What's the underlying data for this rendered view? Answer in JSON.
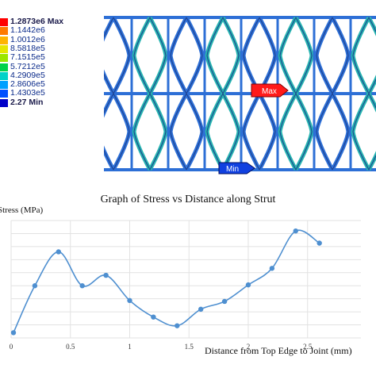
{
  "legend": {
    "entries": [
      {
        "value": "1.2873e6",
        "suffix": "Max",
        "color": "#ff0000"
      },
      {
        "value": "1.1442e6",
        "suffix": "",
        "color": "#ff7a00"
      },
      {
        "value": "1.0012e6",
        "suffix": "",
        "color": "#ffb400"
      },
      {
        "value": "8.5818e5",
        "suffix": "",
        "color": "#e6e600"
      },
      {
        "value": "7.1515e5",
        "suffix": "",
        "color": "#9be600"
      },
      {
        "value": "5.7212e5",
        "suffix": "",
        "color": "#00d24a"
      },
      {
        "value": "4.2909e5",
        "suffix": "",
        "color": "#00d2c8"
      },
      {
        "value": "2.8606e5",
        "suffix": "",
        "color": "#00a0ff"
      },
      {
        "value": "1.4303e5",
        "suffix": "",
        "color": "#0050ff"
      },
      {
        "value": "2.27",
        "suffix": "Min",
        "color": "#0000c8"
      }
    ]
  },
  "fea": {
    "max_label": "Max",
    "min_label": "Min",
    "colors": {
      "strut": "#2d6fd6",
      "strut_hot": "#27b3b0",
      "grid": "#9aa0a6",
      "marker_max": "#ff1a1a",
      "marker_min": "#1040e0"
    }
  },
  "chart_data": {
    "type": "line",
    "title": "Graph of Stress vs Distance along Strut",
    "ylabel": "Stress (MPa)",
    "xlabel": "Distance from Top Edge to Joint (mm)",
    "xticks": [
      "0",
      "0.5",
      "1",
      "1.5",
      "2",
      "2.5"
    ],
    "xlim": [
      0,
      2.95
    ],
    "ylim": [
      0,
      1.35
    ],
    "grid": true,
    "series_color": "#4e8fd0",
    "x": [
      0.02,
      0.2,
      0.4,
      0.6,
      0.8,
      1.0,
      1.2,
      1.4,
      1.6,
      1.8,
      2.0,
      2.2,
      2.4,
      2.6
    ],
    "y": [
      0.06,
      0.6,
      0.99,
      0.6,
      0.72,
      0.43,
      0.24,
      0.14,
      0.33,
      0.42,
      0.61,
      0.8,
      1.23,
      1.09
    ]
  }
}
